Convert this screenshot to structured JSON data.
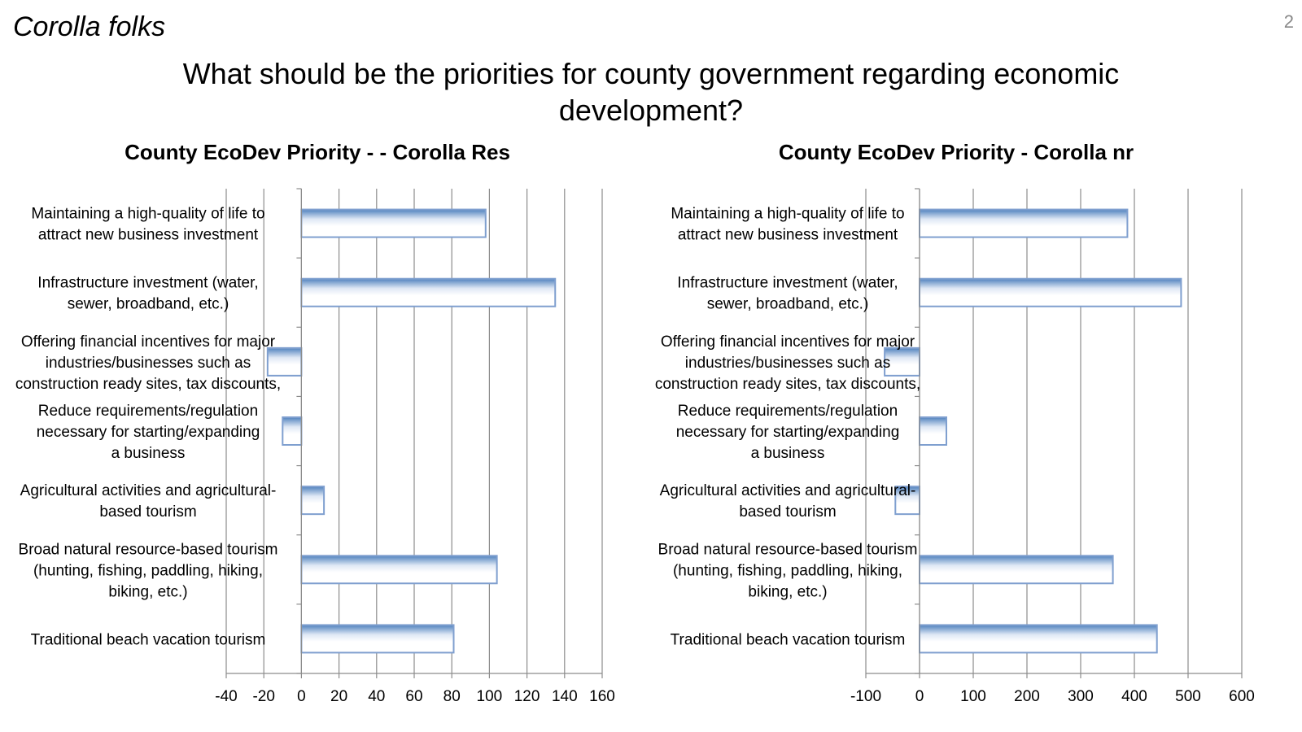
{
  "corner_label": "Corolla folks",
  "page_number": "2",
  "main_title": "What should be the priorities for county government regarding economic development?",
  "colors": {
    "bar_stroke": "#7f9fcf",
    "bar_top": "#4f81bd",
    "bar_fill": "#ffffff",
    "grid": "#8c8c8c"
  },
  "chart_data": [
    {
      "type": "bar",
      "orientation": "horizontal",
      "title": "County EcoDev Priority - - Corolla Res",
      "categories": [
        [
          "Maintaining a high-quality of life to",
          "attract new business investment"
        ],
        [
          "Infrastructure investment (water,",
          "sewer, broadband, etc.)"
        ],
        [
          "Offering financial incentives for major",
          "industries/businesses such as",
          "construction ready sites, tax discounts,"
        ],
        [
          "Reduce requirements/regulation",
          "necessary for starting/expanding",
          "a business"
        ],
        [
          "Agricultural activities and agricultural-",
          "based tourism"
        ],
        [
          "Broad natural resource-based tourism",
          "(hunting, fishing, paddling, hiking,",
          "biking, etc.)"
        ],
        [
          "Traditional beach vacation tourism"
        ]
      ],
      "values": [
        98,
        135,
        -18,
        -10,
        12,
        104,
        81
      ],
      "xlim": [
        -40,
        160
      ],
      "ticks": [
        -40,
        -20,
        0,
        20,
        40,
        60,
        80,
        100,
        120,
        140,
        160
      ],
      "tick_labels": [
        "-40",
        "-20",
        "0",
        "20",
        "40",
        "60",
        "80",
        "100",
        "120",
        "140",
        "160"
      ],
      "grid": true
    },
    {
      "type": "bar",
      "orientation": "horizontal",
      "title": "County EcoDev Priority - Corolla nr",
      "categories": [
        [
          "Maintaining a high-quality of life to",
          "attract new business investment"
        ],
        [
          "Infrastructure investment (water,",
          "sewer, broadband, etc.)"
        ],
        [
          "Offering financial incentives for major",
          "industries/businesses such as",
          "construction ready sites, tax discounts,"
        ],
        [
          "Reduce requirements/regulation",
          "necessary for starting/expanding",
          "a business"
        ],
        [
          "Agricultural activities and agricultural-",
          "based tourism"
        ],
        [
          "Broad natural resource-based tourism",
          "(hunting, fishing, paddling, hiking,",
          "biking, etc.)"
        ],
        [
          "Traditional beach vacation tourism"
        ]
      ],
      "values": [
        387,
        487,
        -65,
        50,
        -45,
        360,
        442
      ],
      "xlim": [
        -100,
        600
      ],
      "ticks": [
        -100,
        0,
        100,
        200,
        300,
        400,
        500,
        600
      ],
      "tick_labels": [
        "-100",
        "0",
        "100",
        "200",
        "300",
        "400",
        "500",
        "600"
      ],
      "grid": true
    }
  ]
}
